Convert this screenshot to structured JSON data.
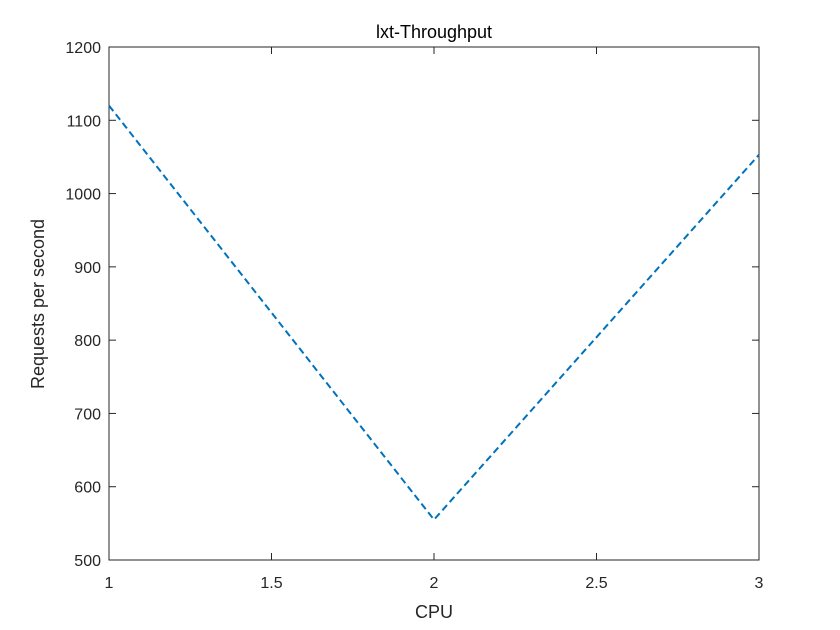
{
  "chart_data": {
    "type": "line",
    "title": "lxt-Throughput",
    "xlabel": "CPU",
    "ylabel": "Requests per second",
    "xlim": [
      1,
      3
    ],
    "ylim": [
      500,
      1200
    ],
    "xticks": [
      1,
      1.5,
      2,
      2.5,
      3
    ],
    "xtick_labels": [
      "1",
      "1.5",
      "2",
      "2.5",
      "3"
    ],
    "yticks": [
      500,
      600,
      700,
      800,
      900,
      1000,
      1100,
      1200
    ],
    "ytick_labels": [
      "500",
      "600",
      "700",
      "800",
      "900",
      "1000",
      "1100",
      "1200"
    ],
    "grid": false,
    "box": true,
    "series": [
      {
        "x": [
          1,
          2,
          3
        ],
        "y": [
          1120,
          555,
          1053
        ],
        "color": "#0072BD",
        "line_style": "dashed"
      }
    ]
  }
}
